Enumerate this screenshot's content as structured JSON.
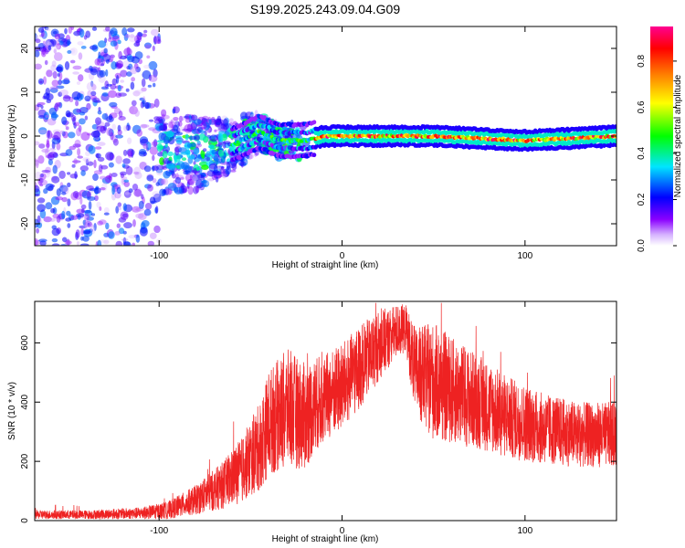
{
  "chart_data": [
    {
      "type": "heatmap",
      "title": "S199.2025.243.09.04.G09",
      "xlabel": "Height of straight line (km)",
      "ylabel": "Frequency (Hz)",
      "xlim": [
        -168,
        150
      ],
      "ylim": [
        -25,
        25
      ],
      "x_ticks": [
        -100,
        0,
        100
      ],
      "y_ticks": [
        -20,
        -10,
        0,
        10,
        20
      ],
      "colorbar": {
        "label": "Normalized spectral amplitude",
        "range": [
          0.0,
          0.95
        ],
        "ticks": [
          0.0,
          0.2,
          0.4,
          0.6,
          0.8
        ],
        "colormap": [
          "#ffffff",
          "#8a00ff",
          "#0000ff",
          "#00e5ff",
          "#00ff00",
          "#ffff00",
          "#ff7f00",
          "#ff0000",
          "#ff00a0"
        ]
      },
      "ridge": {
        "description_points_height_km": [
          -100,
          -80,
          -60,
          -45,
          -35,
          -20,
          -10,
          0,
          50,
          100,
          150
        ],
        "center_frequency_hz": [
          -3,
          -4,
          -2,
          1,
          -1,
          -1,
          0,
          0,
          0,
          -1,
          0
        ]
      }
    },
    {
      "type": "line",
      "xlabel": "Height of straight line (km)",
      "ylabel": "SNR (10 * v/v)",
      "xlim": [
        -168,
        150
      ],
      "ylim": [
        0,
        740
      ],
      "x_ticks": [
        -100,
        0,
        100
      ],
      "y_ticks": [
        0,
        200,
        400,
        600
      ],
      "series": [
        {
          "name": "SNR",
          "color": "#ee2222",
          "envelope_x": [
            -168,
            -140,
            -110,
            -95,
            -80,
            -65,
            -55,
            -45,
            -40,
            -30,
            -20,
            -15,
            -8,
            0,
            10,
            20,
            30,
            35,
            40,
            50,
            60,
            75,
            90,
            110,
            130,
            150
          ],
          "envelope_y": [
            20,
            20,
            25,
            35,
            70,
            120,
            170,
            250,
            330,
            380,
            350,
            390,
            420,
            450,
            520,
            590,
            640,
            650,
            500,
            470,
            440,
            400,
            350,
            310,
            290,
            290
          ],
          "spread_y": [
            15,
            15,
            20,
            30,
            50,
            80,
            110,
            150,
            180,
            200,
            180,
            160,
            150,
            150,
            140,
            120,
            90,
            80,
            150,
            200,
            180,
            160,
            140,
            120,
            110,
            110
          ]
        }
      ]
    }
  ]
}
